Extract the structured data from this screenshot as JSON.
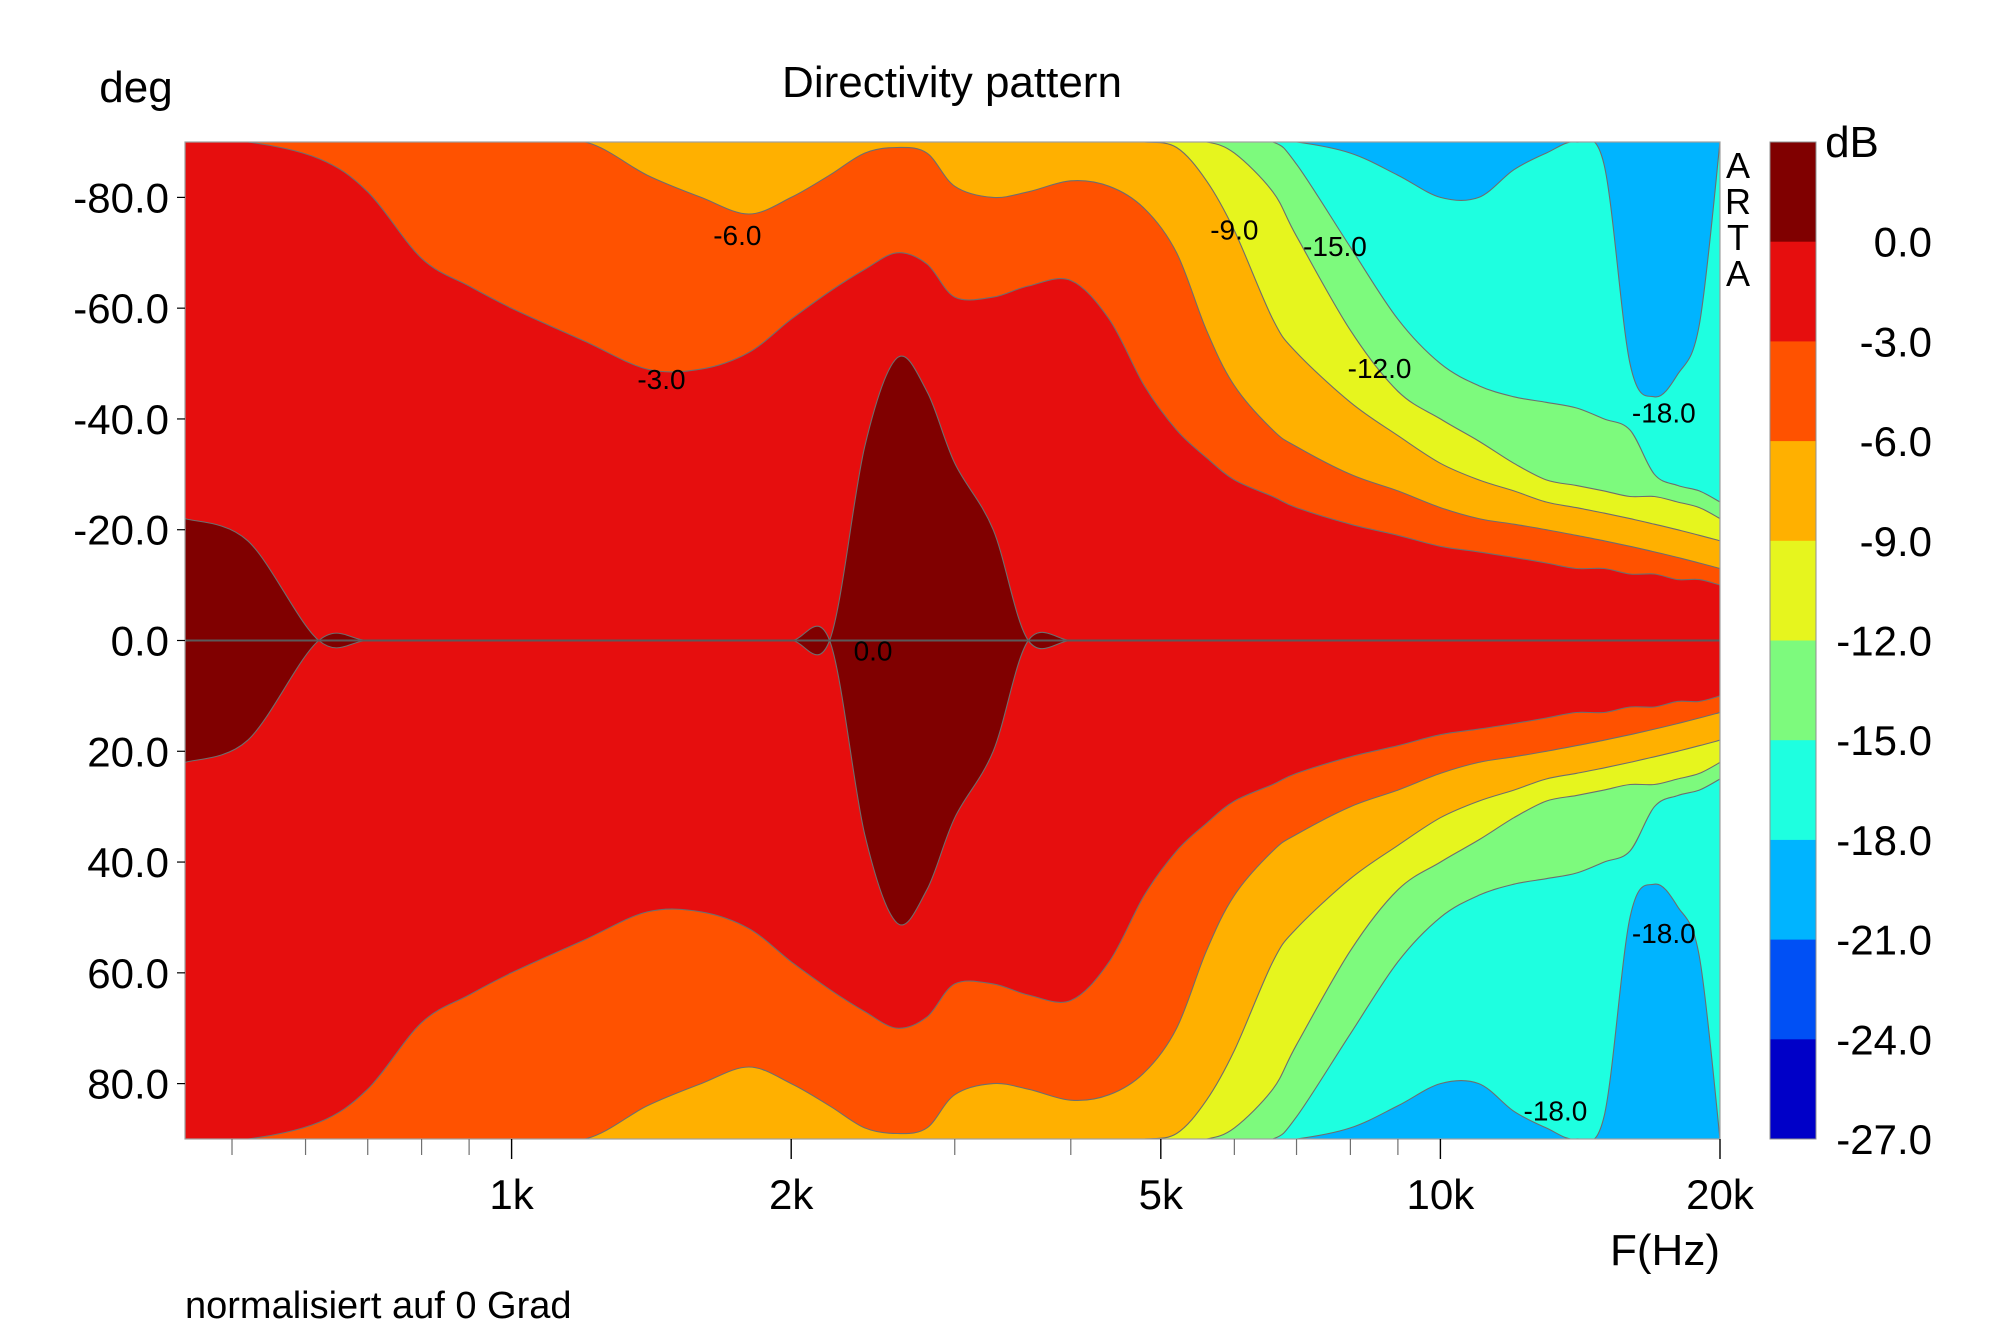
{
  "chart_data": {
    "type": "heatmap",
    "subtype": "contour",
    "title": "Directivity pattern",
    "xlabel": "F(Hz)",
    "ylabel": "deg",
    "colorbar_label": "dB",
    "footnote": "normalisiert auf 0 Grad",
    "watermark": "ARTA",
    "x_scale": "log",
    "x_range": [
      445,
      20000
    ],
    "y_range": [
      -90,
      90
    ],
    "x_ticks": [
      {
        "value": 1000,
        "label": "1k"
      },
      {
        "value": 2000,
        "label": "2k"
      },
      {
        "value": 5000,
        "label": "5k"
      },
      {
        "value": 10000,
        "label": "10k"
      },
      {
        "value": 20000,
        "label": "20k"
      }
    ],
    "x_minor_ticks": [
      500,
      600,
      700,
      800,
      900,
      3000,
      4000,
      6000,
      7000,
      8000,
      9000
    ],
    "y_ticks": [
      {
        "value": -80,
        "label": "-80.0"
      },
      {
        "value": -60,
        "label": "-60.0"
      },
      {
        "value": -40,
        "label": "-40.0"
      },
      {
        "value": -20,
        "label": "-20.0"
      },
      {
        "value": 0,
        "label": "0.0"
      },
      {
        "value": 20,
        "label": "20.0"
      },
      {
        "value": 40,
        "label": "40.0"
      },
      {
        "value": 60,
        "label": "60.0"
      },
      {
        "value": 80,
        "label": "80.0"
      }
    ],
    "color_levels": [
      {
        "min": 0,
        "max": null,
        "color": "#800000"
      },
      {
        "min": -3,
        "max": 0,
        "color": "#e60e0e"
      },
      {
        "min": -6,
        "max": -3,
        "color": "#ff5200"
      },
      {
        "min": -9,
        "max": -6,
        "color": "#ffb000"
      },
      {
        "min": -12,
        "max": -9,
        "color": "#e6f51e"
      },
      {
        "min": -15,
        "max": -12,
        "color": "#7dfa7d"
      },
      {
        "min": -18,
        "max": -15,
        "color": "#1effe0"
      },
      {
        "min": -21,
        "max": -18,
        "color": "#00b4ff"
      },
      {
        "min": -24,
        "max": -21,
        "color": "#0050f5"
      },
      {
        "min": -27,
        "max": -24,
        "color": "#0000c8"
      }
    ],
    "colorbar_labels": [
      "0.0",
      "-3.0",
      "-6.0",
      "-9.0",
      "-12.0",
      "-15.0",
      "-18.0",
      "-21.0",
      "-24.0",
      "-27.0"
    ],
    "contour_labels": [
      {
        "text": "-6.0",
        "freq": 1750,
        "deg": -73
      },
      {
        "text": "-3.0",
        "freq": 1450,
        "deg": -47
      },
      {
        "text": "0.0",
        "freq": 2450,
        "deg": 2
      },
      {
        "text": "-9.0",
        "freq": 6000,
        "deg": -74
      },
      {
        "text": "-15.0",
        "freq": 7700,
        "deg": -71
      },
      {
        "text": "-12.0",
        "freq": 8600,
        "deg": -49
      },
      {
        "text": "-18.0",
        "freq": 17400,
        "deg": -41
      },
      {
        "text": "-18.0",
        "freq": 17400,
        "deg": 53
      },
      {
        "text": "-18.0",
        "freq": 13300,
        "deg": 85
      }
    ],
    "band_boundaries_upper_half": {
      "comment": "contour level vs frequency: angle (deg, magnitude) where response first drops below level",
      "levels": [
        0,
        -3,
        -6,
        -9,
        -12,
        -15,
        -18,
        -21
      ],
      "freq": [
        445,
        520,
        620,
        700,
        800,
        900,
        1000,
        1200,
        1400,
        1600,
        1800,
        2000,
        2200,
        2400,
        2600,
        2800,
        3000,
        3300,
        3600,
        4000,
        4400,
        4800,
        5200,
        5600,
        6000,
        6600,
        7000,
        8000,
        9000,
        10000,
        11000,
        12000,
        13000,
        14000,
        15000,
        16000,
        17000,
        18000,
        19000,
        20000
      ],
      "angles": {
        "0": [
          22,
          18,
          0,
          0,
          0,
          0,
          0,
          0,
          0,
          0,
          0,
          0,
          0,
          35,
          51,
          45,
          32,
          20,
          0,
          0,
          0,
          0,
          0,
          0,
          0,
          0,
          0,
          0,
          0,
          0,
          0,
          0,
          0,
          0,
          0,
          0,
          0,
          0,
          0,
          0
        ],
        "-3": [
          90,
          90,
          87,
          81,
          69,
          64,
          60,
          54,
          49,
          49,
          52,
          58,
          63,
          67,
          70,
          68,
          62,
          62,
          64,
          65,
          58,
          46,
          38,
          33,
          29,
          26,
          24,
          21,
          19,
          17,
          16,
          15,
          14,
          13,
          13,
          12,
          12,
          11,
          11,
          10
        ],
        "-6": [
          90,
          90,
          90,
          90,
          90,
          90,
          90,
          90,
          84,
          80,
          77,
          80,
          84,
          88,
          89,
          88,
          82,
          80,
          81,
          83,
          82,
          78,
          70,
          56,
          46,
          38,
          35,
          30,
          27,
          24,
          22,
          21,
          20,
          19,
          18,
          17,
          16,
          15,
          14,
          13
        ],
        "-9": [
          90,
          90,
          90,
          90,
          90,
          90,
          90,
          90,
          90,
          90,
          90,
          90,
          90,
          90,
          90,
          90,
          90,
          90,
          90,
          90,
          90,
          90,
          89,
          83,
          74,
          58,
          52,
          43,
          37,
          32,
          29,
          27,
          25,
          24,
          23,
          22,
          21,
          20,
          19,
          18
        ],
        "-12": [
          90,
          90,
          90,
          90,
          90,
          90,
          90,
          90,
          90,
          90,
          90,
          90,
          90,
          90,
          90,
          90,
          90,
          90,
          90,
          90,
          90,
          90,
          90,
          90,
          88,
          81,
          73,
          56,
          45,
          40,
          36,
          32,
          29,
          28,
          27,
          26,
          26,
          25,
          24,
          22
        ],
        "-15": [
          90,
          90,
          90,
          90,
          90,
          90,
          90,
          90,
          90,
          90,
          90,
          90,
          90,
          90,
          90,
          90,
          90,
          90,
          90,
          90,
          90,
          90,
          90,
          90,
          90,
          90,
          86,
          71,
          58,
          50,
          46,
          44,
          43,
          42,
          40,
          38,
          30,
          28,
          27,
          25
        ],
        "-18": [
          90,
          90,
          90,
          90,
          90,
          90,
          90,
          90,
          90,
          90,
          90,
          90,
          90,
          90,
          90,
          90,
          90,
          90,
          90,
          90,
          90,
          90,
          90,
          90,
          90,
          90,
          90,
          88,
          84,
          80,
          80,
          85,
          88,
          90,
          86,
          50,
          44,
          48,
          57,
          90
        ],
        "-21": [
          90,
          90,
          90,
          90,
          90,
          90,
          90,
          90,
          90,
          90,
          90,
          90,
          90,
          90,
          90,
          90,
          90,
          90,
          90,
          90,
          90,
          90,
          90,
          90,
          90,
          90,
          90,
          90,
          90,
          90,
          90,
          90,
          90,
          90,
          90,
          90,
          90,
          90,
          90,
          90
        ]
      }
    }
  }
}
